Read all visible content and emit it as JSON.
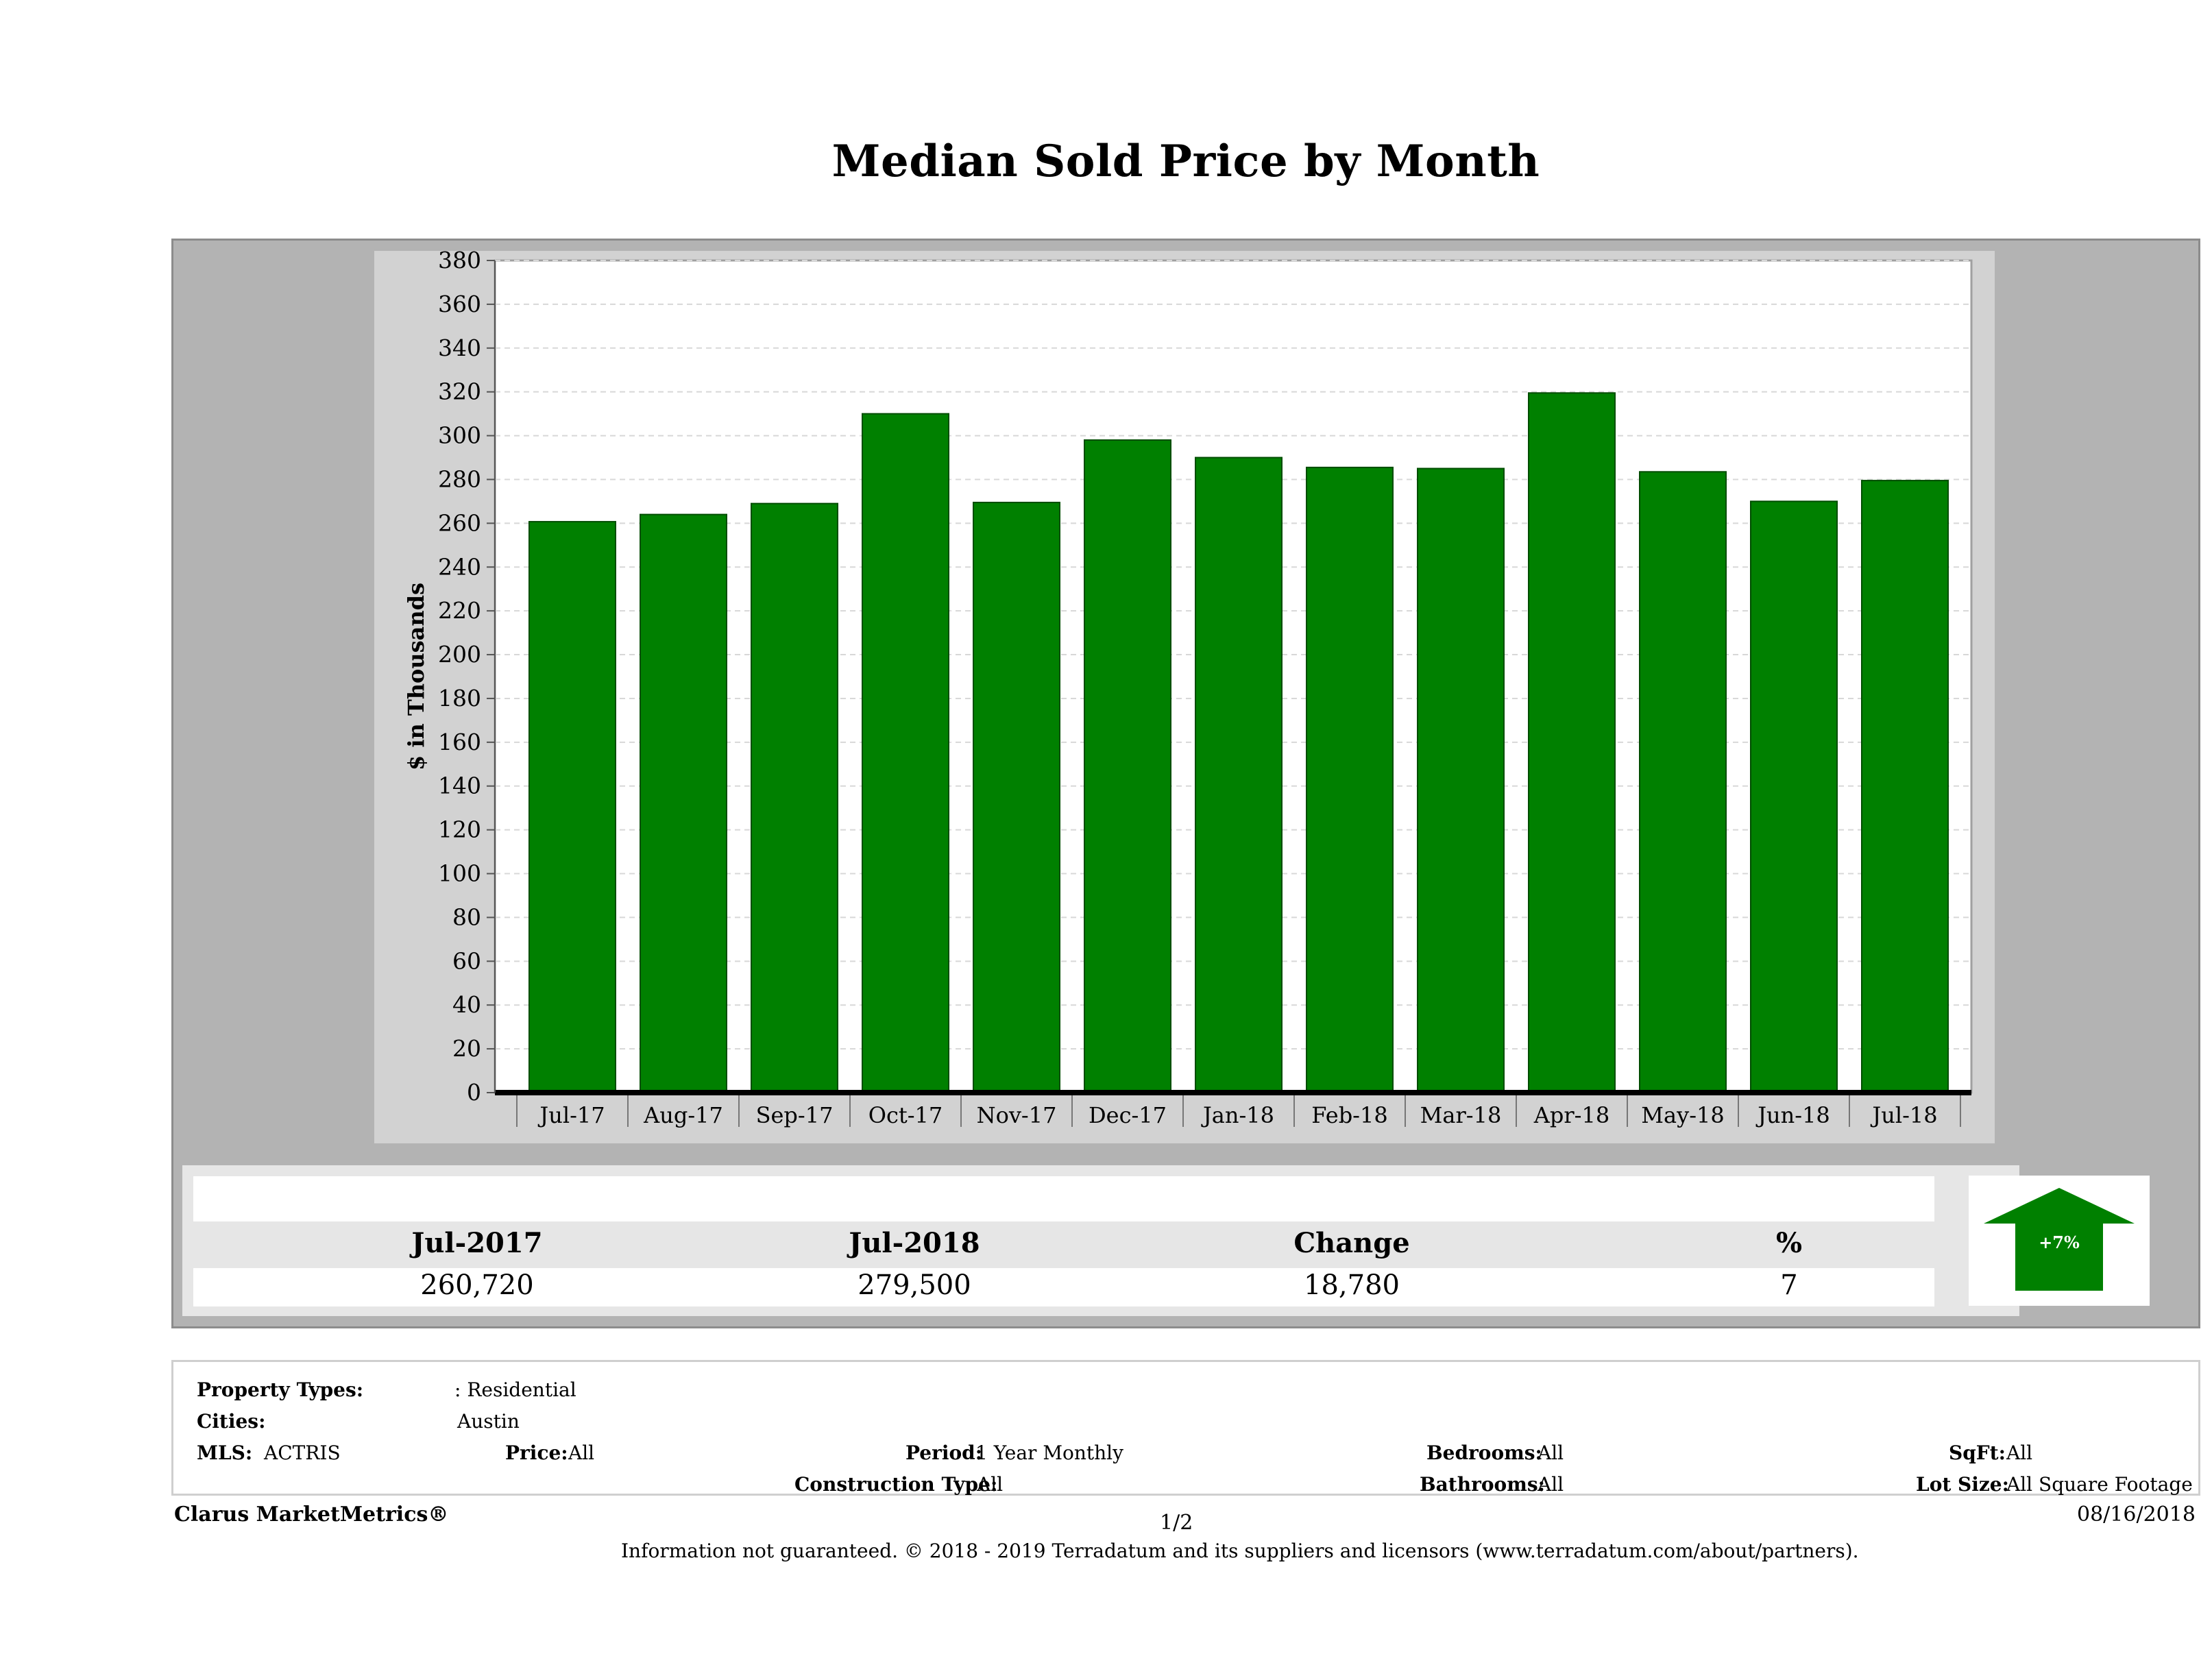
{
  "title": "Median Sold Price by Month",
  "chart_data": {
    "type": "bar",
    "title": "Median Sold Price by Month",
    "ylabel": "$ in Thousands",
    "xlabel": "",
    "categories": [
      "Jul-17",
      "Aug-17",
      "Sep-17",
      "Oct-17",
      "Nov-17",
      "Dec-17",
      "Jan-18",
      "Feb-18",
      "Mar-18",
      "Apr-18",
      "May-18",
      "Jun-18",
      "Jul-18"
    ],
    "values": [
      260.72,
      264,
      269,
      310,
      269.5,
      298,
      290,
      285.5,
      285,
      319.5,
      283.5,
      270,
      279.5
    ],
    "ylim": [
      0,
      380
    ],
    "yticks": [
      0,
      20,
      40,
      60,
      80,
      100,
      120,
      140,
      160,
      180,
      200,
      220,
      240,
      260,
      280,
      300,
      320,
      340,
      360,
      380
    ],
    "grid": true,
    "bar_color": "#008000"
  },
  "summary": {
    "col1_header": "Jul-2017",
    "col1_value": "260,720",
    "col2_header": "Jul-2018",
    "col2_value": "279,500",
    "col3_header": "Change",
    "col3_value": "18,780",
    "col4_header": "%",
    "col4_value": "7",
    "arrow_label": "+7%",
    "arrow_color": "#008000"
  },
  "filters": {
    "property_types_label": "Property Types:",
    "property_types_value": ": Residential",
    "cities_label": "Cities:",
    "cities_value": "Austin",
    "mls_label": "MLS:",
    "mls_value": "ACTRIS",
    "price_label": "Price:",
    "price_value": "All",
    "period_label": "Period:",
    "period_value": "1 Year Monthly",
    "construction_label": "Construction Type:",
    "construction_value": "All",
    "bedrooms_label": "Bedrooms:",
    "bedrooms_value": "All",
    "bathrooms_label": "Bathrooms:",
    "bathrooms_value": "All",
    "sqft_label": "SqFt:",
    "sqft_value": "All",
    "lotsize_label": "Lot Size:",
    "lotsize_value": "All Square Footage"
  },
  "footer": {
    "brand": "Clarus MarketMetrics®",
    "page": "1/2",
    "date": "08/16/2018",
    "disclaimer": "Information not guaranteed. © 2018 - 2019 Terradatum and its suppliers and licensors (www.terradatum.com/about/partners)."
  }
}
